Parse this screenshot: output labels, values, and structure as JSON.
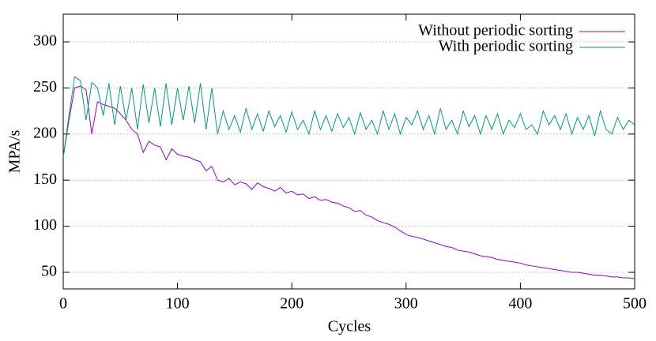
{
  "chart_data": {
    "type": "line",
    "x_label": "Cycles",
    "y_label": "MPA/s",
    "x": [
      0,
      5,
      10,
      15,
      20,
      25,
      30,
      35,
      40,
      45,
      50,
      55,
      60,
      65,
      70,
      75,
      80,
      85,
      90,
      95,
      100,
      105,
      110,
      115,
      120,
      125,
      130,
      135,
      140,
      145,
      150,
      155,
      160,
      165,
      170,
      175,
      180,
      185,
      190,
      195,
      200,
      205,
      210,
      215,
      220,
      225,
      230,
      235,
      240,
      245,
      250,
      255,
      260,
      265,
      270,
      275,
      280,
      285,
      290,
      295,
      300,
      305,
      310,
      315,
      320,
      325,
      330,
      335,
      340,
      345,
      350,
      355,
      360,
      365,
      370,
      375,
      380,
      385,
      390,
      395,
      400,
      405,
      410,
      415,
      420,
      425,
      430,
      435,
      440,
      445,
      450,
      455,
      460,
      465,
      470,
      475,
      480,
      485,
      490,
      495,
      500
    ],
    "series": [
      {
        "name": "Without periodic sorting",
        "color": "#9400d3",
        "values": [
          175,
          215,
          250,
          252,
          248,
          200,
          235,
          232,
          230,
          228,
          222,
          215,
          205,
          200,
          180,
          192,
          188,
          186,
          172,
          184,
          178,
          176,
          175,
          172,
          170,
          160,
          165,
          150,
          148,
          152,
          145,
          148,
          146,
          140,
          147,
          143,
          141,
          138,
          142,
          136,
          138,
          134,
          135,
          130,
          132,
          128,
          129,
          126,
          125,
          122,
          120,
          116,
          117,
          112,
          110,
          106,
          104,
          102,
          99,
          95,
          91,
          89,
          88,
          86,
          84,
          82,
          80,
          78,
          77,
          74,
          73,
          72,
          70,
          68,
          67,
          66,
          64,
          63,
          62,
          61,
          60,
          58,
          57,
          56,
          55,
          54,
          53,
          52,
          51,
          50,
          50,
          49,
          48,
          47,
          47,
          46,
          45,
          45,
          44,
          44,
          43
        ]
      },
      {
        "name": "With periodic sorting",
        "color": "#009e73",
        "values": [
          175,
          220,
          262,
          258,
          215,
          256,
          250,
          220,
          255,
          210,
          252,
          215,
          250,
          205,
          254,
          212,
          250,
          208,
          255,
          210,
          250,
          215,
          252,
          212,
          255,
          205,
          250,
          200,
          225,
          205,
          220,
          202,
          228,
          205,
          222,
          203,
          225,
          208,
          220,
          202,
          224,
          205,
          215,
          200,
          225,
          205,
          220,
          203,
          222,
          207,
          218,
          200,
          223,
          205,
          215,
          200,
          225,
          205,
          222,
          200,
          218,
          210,
          225,
          205,
          220,
          200,
          228,
          205,
          215,
          200,
          225,
          208,
          220,
          200,
          220,
          205,
          222,
          200,
          215,
          207,
          222,
          205,
          210,
          200,
          225,
          210,
          220,
          205,
          222,
          200,
          218,
          205,
          220,
          198,
          225,
          205,
          200,
          218,
          205,
          215,
          210
        ]
      }
    ],
    "xlim": [
      0,
      500
    ],
    "xticks": [
      0,
      100,
      200,
      300,
      400,
      500
    ],
    "ylim": [
      32,
      330
    ],
    "yticks": [
      50,
      100,
      150,
      200,
      250,
      300
    ],
    "grid": true,
    "legend": "top-right"
  }
}
